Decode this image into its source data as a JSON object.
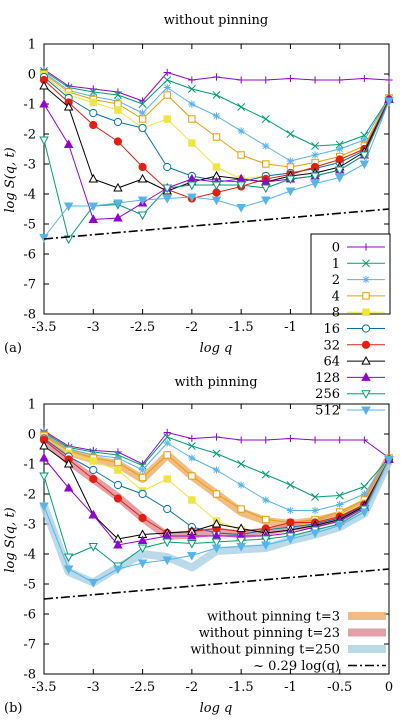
{
  "chart_data": [
    {
      "type": "line",
      "title": "without pinning",
      "panel_label": "(a)",
      "xlabel": "log q",
      "ylabel": "log S(q, t)",
      "xlim": [
        -3.5,
        0
      ],
      "ylim": [
        -8,
        1
      ],
      "xticks": [
        "-3.5",
        "-3",
        "-2.5",
        "-2",
        "-1.5",
        "-1"
      ],
      "yticks": [
        "1",
        "0",
        "-1",
        "-2",
        "-3",
        "-4",
        "-5",
        "-6",
        "-7",
        "-8"
      ],
      "x": [
        -3.5,
        -3.25,
        -3.0,
        -2.75,
        -2.5,
        -2.25,
        -2.0,
        -1.75,
        -1.5,
        -1.25,
        -1.0,
        -0.75,
        -0.5,
        -0.25,
        0.0
      ],
      "legend_position": "bottom-right",
      "series": [
        {
          "name": "0",
          "color": "#9400d3",
          "marker": "plus",
          "values": [
            0.15,
            -0.4,
            -0.5,
            -0.6,
            -0.9,
            0.05,
            -0.2,
            -0.1,
            -0.2,
            -0.2,
            -0.15,
            -0.2,
            -0.2,
            -0.15,
            -0.2
          ]
        },
        {
          "name": "1",
          "color": "#009e73",
          "marker": "x",
          "values": [
            0.1,
            -0.45,
            -0.6,
            -0.7,
            -1.0,
            -0.2,
            -0.5,
            -0.7,
            -1.1,
            -1.5,
            -2.0,
            -2.4,
            -2.35,
            -2.05,
            -0.8
          ]
        },
        {
          "name": "2",
          "color": "#56b4e9",
          "marker": "star",
          "values": [
            0.05,
            -0.55,
            -0.75,
            -0.9,
            -1.3,
            -0.45,
            -1.0,
            -1.4,
            -1.9,
            -2.4,
            -2.9,
            -2.7,
            -2.5,
            -2.2,
            -0.8
          ]
        },
        {
          "name": "4",
          "color": "#e69f00",
          "marker": "square-open",
          "values": [
            0.0,
            -0.6,
            -0.85,
            -1.0,
            -1.5,
            -0.7,
            -1.5,
            -2.1,
            -2.7,
            -3.0,
            -3.1,
            -2.95,
            -2.75,
            -2.4,
            -0.8
          ]
        },
        {
          "name": "8",
          "color": "#f0e442",
          "marker": "square-filled",
          "values": [
            -0.05,
            -0.7,
            -0.95,
            -1.2,
            -1.8,
            -1.5,
            -2.3,
            -3.1,
            -3.5,
            -3.4,
            -3.3,
            -3.1,
            -2.85,
            -2.5,
            -0.85
          ]
        },
        {
          "name": "16",
          "color": "#0072b2",
          "marker": "circle-open",
          "values": [
            -0.1,
            -0.8,
            -1.3,
            -1.6,
            -1.8,
            -3.1,
            -3.4,
            -3.55,
            -3.6,
            -3.4,
            -3.3,
            -3.15,
            -2.95,
            -2.55,
            -0.85
          ]
        },
        {
          "name": "32",
          "color": "#e51e10",
          "marker": "circle-filled",
          "values": [
            -0.2,
            -0.95,
            -1.7,
            -2.25,
            -3.1,
            -3.85,
            -4.15,
            -3.95,
            -3.75,
            -3.5,
            -3.35,
            -3.1,
            -2.85,
            -2.5,
            -0.85
          ]
        },
        {
          "name": "64",
          "color": "#000000",
          "marker": "triangle-open",
          "values": [
            -0.4,
            -1.1,
            -3.5,
            -3.8,
            -3.5,
            -3.9,
            -3.6,
            -3.4,
            -3.5,
            -3.6,
            -3.4,
            -3.3,
            -3.1,
            -2.6,
            -0.85
          ]
        },
        {
          "name": "128",
          "color": "#9400d3",
          "marker": "triangle-filled",
          "values": [
            -1.0,
            -2.35,
            -4.85,
            -4.8,
            -4.3,
            -3.8,
            -3.5,
            -3.6,
            -3.5,
            -3.6,
            -3.5,
            -3.4,
            -3.2,
            -2.7,
            -0.85
          ]
        },
        {
          "name": "256",
          "color": "#009e73",
          "marker": "triangle-down-open",
          "values": [
            -2.2,
            -5.5,
            -4.4,
            -4.35,
            -4.7,
            -3.8,
            -3.7,
            -3.7,
            -3.7,
            -3.8,
            -3.5,
            -3.4,
            -3.2,
            -2.7,
            -0.9
          ]
        },
        {
          "name": "512",
          "color": "#56b4e9",
          "marker": "triangle-down-filled",
          "values": [
            -5.45,
            -4.4,
            -4.4,
            -4.3,
            -4.2,
            -4.15,
            -4.1,
            -4.2,
            -4.45,
            -4.2,
            -3.9,
            -3.65,
            -3.45,
            -3.0,
            -0.9
          ]
        }
      ],
      "fit_line": {
        "x": [
          -3.5,
          0.0
        ],
        "values": [
          -5.5,
          -4.5
        ],
        "color": "#000000"
      }
    },
    {
      "type": "line",
      "title": "with pinning",
      "panel_label": "(b)",
      "xlabel": "log q",
      "ylabel": "log S(q, t)",
      "xlim": [
        -3.5,
        0
      ],
      "ylim": [
        -8,
        1
      ],
      "xticks": [
        "-3.5",
        "-3",
        "-2.5",
        "-2",
        "-1.5",
        "-1",
        "-0.5",
        "0"
      ],
      "yticks": [
        "1",
        "0",
        "-1",
        "-2",
        "-3",
        "-4",
        "-5",
        "-6",
        "-7",
        "-8"
      ],
      "x": [
        -3.5,
        -3.25,
        -3.0,
        -2.75,
        -2.5,
        -2.25,
        -2.0,
        -1.75,
        -1.5,
        -1.25,
        -1.0,
        -0.75,
        -0.5,
        -0.25,
        0.0
      ],
      "legend_position": "bottom-right",
      "series": [
        {
          "color": "#9400d3",
          "marker": "plus",
          "values": [
            0.1,
            -0.4,
            -0.55,
            -0.6,
            -1.0,
            0.05,
            -0.15,
            -0.1,
            -0.2,
            -0.2,
            -0.15,
            -0.2,
            -0.2,
            -0.2,
            -0.8
          ]
        },
        {
          "color": "#009e73",
          "marker": "x",
          "values": [
            0.05,
            -0.45,
            -0.6,
            -0.7,
            -1.05,
            -0.1,
            -0.4,
            -0.65,
            -1.0,
            -1.35,
            -1.7,
            -2.1,
            -2.05,
            -1.75,
            -0.8
          ]
        },
        {
          "color": "#56b4e9",
          "marker": "star",
          "values": [
            0.0,
            -0.5,
            -0.7,
            -0.8,
            -1.2,
            -0.3,
            -0.8,
            -1.2,
            -1.7,
            -2.2,
            -2.55,
            -2.55,
            -2.35,
            -2.0,
            -0.8
          ]
        },
        {
          "color": "#e69f00",
          "marker": "square-open",
          "values": [
            -0.05,
            -0.55,
            -0.8,
            -0.95,
            -1.45,
            -0.7,
            -1.4,
            -2.0,
            -2.5,
            -2.85,
            -2.95,
            -2.85,
            -2.6,
            -2.2,
            -0.8
          ]
        },
        {
          "color": "#f0e442",
          "marker": "square-filled",
          "values": [
            -0.1,
            -0.65,
            -0.9,
            -1.2,
            -1.9,
            -1.5,
            -2.2,
            -2.9,
            -3.2,
            -3.2,
            -3.1,
            -2.95,
            -2.7,
            -2.3,
            -0.85
          ]
        },
        {
          "color": "#0072b2",
          "marker": "circle-open",
          "values": [
            -0.15,
            -0.75,
            -1.2,
            -1.7,
            -2.0,
            -2.5,
            -3.1,
            -3.3,
            -3.35,
            -3.2,
            -3.1,
            -3.0,
            -2.8,
            -2.35,
            -0.85
          ]
        },
        {
          "color": "#e51e10",
          "marker": "circle-filled",
          "values": [
            -0.2,
            -0.85,
            -1.5,
            -2.15,
            -2.8,
            -3.3,
            -3.25,
            -3.15,
            -3.25,
            -3.15,
            -2.95,
            -2.95,
            -2.75,
            -2.35,
            -0.85
          ]
        },
        {
          "color": "#000000",
          "marker": "triangle-open",
          "values": [
            -0.4,
            -1.0,
            -2.7,
            -3.5,
            -3.35,
            -3.3,
            -3.25,
            -3.0,
            -3.15,
            -3.3,
            -3.2,
            -3.05,
            -2.85,
            -2.4,
            -0.85
          ]
        },
        {
          "color": "#9400d3",
          "marker": "triangle-filled",
          "values": [
            -0.8,
            -1.8,
            -2.7,
            -3.7,
            -3.55,
            -3.4,
            -3.4,
            -3.4,
            -3.4,
            -3.4,
            -3.3,
            -3.1,
            -2.9,
            -2.45,
            -0.85
          ]
        },
        {
          "color": "#009e73",
          "marker": "triangle-down-open",
          "values": [
            -1.4,
            -4.1,
            -3.75,
            -4.4,
            -3.8,
            -3.6,
            -3.65,
            -3.6,
            -3.55,
            -3.5,
            -3.4,
            -3.2,
            -3.0,
            -2.5,
            -0.85
          ]
        },
        {
          "color": "#56b4e9",
          "marker": "triangle-down-filled",
          "values": [
            -2.4,
            -4.5,
            -4.95,
            -4.5,
            -4.3,
            -4.2,
            -4.05,
            -3.8,
            -3.75,
            -3.7,
            -3.5,
            -3.3,
            -3.05,
            -2.6,
            -0.85
          ]
        }
      ],
      "bands": [
        {
          "name": "without pinning t=3",
          "color": "#f0b070",
          "values": [
            0.0,
            -0.6,
            -0.85,
            -1.0,
            -1.5,
            -0.7,
            -1.4,
            -2.0,
            -2.6,
            -2.9,
            -3.0,
            -2.9,
            -2.7,
            -2.3,
            -0.8
          ]
        },
        {
          "name": "without pinning t=23",
          "color": "#e09098",
          "values": [
            -0.15,
            -0.9,
            -1.5,
            -2.1,
            -2.8,
            -3.4,
            -3.35,
            -3.25,
            -3.35,
            -3.25,
            -3.1,
            -3.0,
            -2.8,
            -2.4,
            -0.85
          ]
        },
        {
          "name": "without pinning t=250",
          "color": "#aed4e6",
          "values": [
            -2.4,
            -4.6,
            -4.95,
            -4.45,
            -4.0,
            -4.1,
            -4.45,
            -3.9,
            -3.85,
            -3.8,
            -3.55,
            -3.35,
            -3.1,
            -2.65,
            -0.9
          ]
        }
      ],
      "fit_line": {
        "name": "~ 0.29 log(q)",
        "x": [
          -3.5,
          0.0
        ],
        "values": [
          -5.5,
          -4.5
        ],
        "color": "#000000"
      }
    }
  ]
}
